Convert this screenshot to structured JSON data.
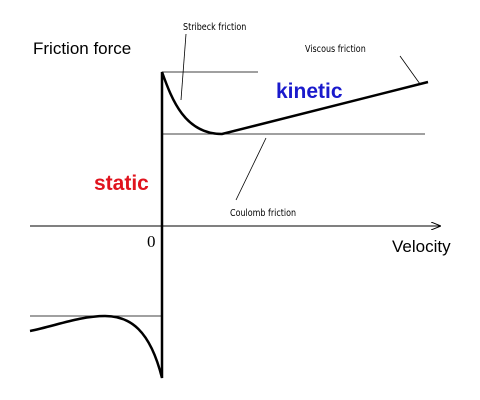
{
  "diagram": {
    "labels": {
      "y_axis": "Friction force",
      "x_axis": "Velocity",
      "origin": "0",
      "stribeck": "Stribeck friction",
      "viscous": "Viscous friction",
      "coulomb": "Coulomb friction",
      "kinetic": "kinetic",
      "static": "static"
    }
  }
}
